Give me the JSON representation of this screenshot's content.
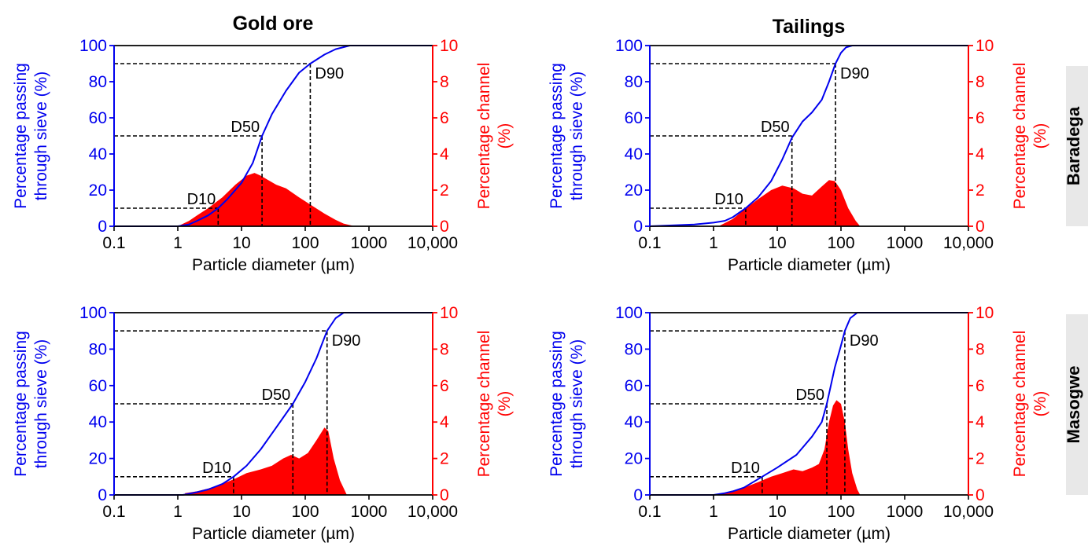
{
  "figure": {
    "column_titles": [
      "Gold ore",
      "Tailings"
    ],
    "row_labels": [
      "Baradega",
      "Masogwe"
    ]
  },
  "colors": {
    "cumulative": "#0000ee",
    "channel": "#ff0000",
    "axis": "#000000",
    "row_tab_bg": "#e8e8e8"
  },
  "chart_data": [
    {
      "type": "line",
      "title": "Gold ore",
      "row": "Baradega",
      "xlabel": "Particle diameter (µm)",
      "ylabel_left": [
        "Percentage passing",
        "through sieve (%)"
      ],
      "ylabel_right": [
        "Percentage channel",
        "(%)"
      ],
      "x_scale": "log",
      "xlim": [
        0.1,
        10000
      ],
      "x_ticks": [
        "0.1",
        "1",
        "10",
        "100",
        "1000",
        "10,000"
      ],
      "ylim_left": [
        0,
        100
      ],
      "y_ticks_left": [
        "0",
        "20",
        "40",
        "60",
        "80",
        "100"
      ],
      "ylim_right": [
        0,
        10
      ],
      "y_ticks_right": [
        "0",
        "2",
        "4",
        "6",
        "8",
        "10"
      ],
      "series": [
        {
          "axis": "left",
          "kind": "line",
          "x": [
            0.1,
            1,
            1.5,
            2,
            3,
            4.3,
            6,
            10,
            15,
            21,
            30,
            50,
            80,
            120,
            200,
            300,
            500,
            1000,
            10000
          ],
          "y": [
            0,
            0,
            1,
            3,
            6,
            10,
            15,
            24,
            35,
            50,
            62,
            75,
            85,
            90,
            95,
            98,
            100,
            100,
            100
          ]
        },
        {
          "axis": "right",
          "kind": "area",
          "x": [
            1,
            1.5,
            2,
            3,
            5,
            8,
            12,
            16,
            20,
            25,
            35,
            50,
            80,
            120,
            200,
            300,
            400,
            600
          ],
          "y": [
            0,
            0.3,
            0.6,
            1.0,
            1.6,
            2.3,
            2.8,
            2.95,
            2.8,
            2.6,
            2.3,
            2.1,
            1.6,
            1.2,
            0.7,
            0.35,
            0.15,
            0
          ]
        }
      ],
      "markers": [
        {
          "label": "D10",
          "x": 4.3,
          "y": 10
        },
        {
          "label": "D50",
          "x": 21,
          "y": 50
        },
        {
          "label": "D90",
          "x": 120,
          "y": 90
        }
      ]
    },
    {
      "type": "line",
      "title": "Tailings",
      "row": "Baradega",
      "xlabel": "Particle diameter (µm)",
      "ylabel_left": [
        "Percentage passing",
        "through sieve (%)"
      ],
      "ylabel_right": [
        "Percentage channel",
        "(%)"
      ],
      "x_scale": "log",
      "xlim": [
        0.1,
        10000
      ],
      "x_ticks": [
        "0.1",
        "1",
        "10",
        "100",
        "1000",
        "10,000"
      ],
      "ylim_left": [
        0,
        100
      ],
      "y_ticks_left": [
        "0",
        "20",
        "40",
        "60",
        "80",
        "100"
      ],
      "ylim_right": [
        0,
        10
      ],
      "y_ticks_right": [
        "0",
        "2",
        "4",
        "6",
        "8",
        "10"
      ],
      "series": [
        {
          "axis": "left",
          "kind": "line",
          "x": [
            0.1,
            0.5,
            1,
            1.5,
            2,
            3.2,
            5,
            8,
            12,
            17,
            25,
            35,
            50,
            65,
            82,
            100,
            120,
            150,
            200,
            10000
          ],
          "y": [
            0,
            1,
            2,
            3,
            5,
            10,
            16,
            25,
            37,
            49,
            58,
            63,
            70,
            80,
            90,
            96,
            99,
            100,
            100,
            100
          ]
        },
        {
          "axis": "right",
          "kind": "area",
          "x": [
            1.2,
            2,
            3,
            5,
            8,
            12,
            18,
            25,
            35,
            50,
            65,
            80,
            100,
            130,
            170,
            200
          ],
          "y": [
            0,
            0.4,
            0.9,
            1.5,
            2.0,
            2.25,
            2.1,
            1.8,
            1.7,
            2.2,
            2.55,
            2.5,
            2.0,
            1.0,
            0.3,
            0
          ]
        }
      ],
      "markers": [
        {
          "label": "D10",
          "x": 3.2,
          "y": 10
        },
        {
          "label": "D50",
          "x": 17,
          "y": 50
        },
        {
          "label": "D90",
          "x": 82,
          "y": 90
        }
      ]
    },
    {
      "type": "line",
      "title": "",
      "row": "Masogwe",
      "xlabel": "Particle diameter (µm)",
      "ylabel_left": [
        "Percentage passing",
        "through sieve (%)"
      ],
      "ylabel_right": [
        "Percentage channel",
        "(%)"
      ],
      "x_scale": "log",
      "xlim": [
        0.1,
        10000
      ],
      "x_ticks": [
        "0.1",
        "1",
        "10",
        "100",
        "1000",
        "10,000"
      ],
      "ylim_left": [
        0,
        100
      ],
      "y_ticks_left": [
        "0",
        "20",
        "40",
        "60",
        "80",
        "100"
      ],
      "ylim_right": [
        0,
        10
      ],
      "y_ticks_right": [
        "0",
        "2",
        "4",
        "6",
        "8",
        "10"
      ],
      "series": [
        {
          "axis": "left",
          "kind": "line",
          "x": [
            0.1,
            1.2,
            2,
            3,
            5,
            7.5,
            12,
            20,
            35,
            64,
            100,
            150,
            220,
            300,
            400,
            10000
          ],
          "y": [
            0,
            0,
            1.5,
            3,
            6,
            10,
            16,
            25,
            37,
            50,
            62,
            75,
            90,
            97,
            100,
            100
          ]
        },
        {
          "axis": "right",
          "kind": "area",
          "x": [
            1.3,
            2,
            3,
            5,
            8,
            12,
            20,
            30,
            45,
            60,
            80,
            110,
            150,
            200,
            230,
            280,
            350,
            450
          ],
          "y": [
            0.1,
            0.2,
            0.35,
            0.6,
            0.9,
            1.2,
            1.4,
            1.6,
            2.0,
            2.2,
            2.0,
            2.3,
            3.0,
            3.7,
            3.5,
            2.0,
            0.8,
            0
          ]
        }
      ],
      "markers": [
        {
          "label": "D10",
          "x": 7.5,
          "y": 10
        },
        {
          "label": "D50",
          "x": 64,
          "y": 50
        },
        {
          "label": "D90",
          "x": 220,
          "y": 90
        }
      ]
    },
    {
      "type": "line",
      "title": "",
      "row": "Masogwe",
      "xlabel": "Particle diameter (µm)",
      "ylabel_left": [
        "Percentage passing",
        "through sieve (%)"
      ],
      "ylabel_right": [
        "Percentage channel",
        "(%)"
      ],
      "x_scale": "log",
      "xlim": [
        0.1,
        10000
      ],
      "x_ticks": [
        "0.1",
        "1",
        "10",
        "100",
        "1000",
        "10,000"
      ],
      "ylim_left": [
        0,
        100
      ],
      "y_ticks_left": [
        "0",
        "20",
        "40",
        "60",
        "80",
        "100"
      ],
      "ylim_right": [
        0,
        10
      ],
      "y_ticks_right": [
        "0",
        "2",
        "4",
        "6",
        "8",
        "10"
      ],
      "series": [
        {
          "axis": "left",
          "kind": "line",
          "x": [
            0.1,
            1,
            1.5,
            2,
            3,
            5.8,
            10,
            20,
            35,
            50,
            60,
            80,
            100,
            115,
            140,
            180,
            10000
          ],
          "y": [
            0,
            0,
            1,
            2,
            4,
            10,
            15,
            22,
            32,
            40,
            50,
            70,
            82,
            90,
            97,
            100,
            100
          ]
        },
        {
          "axis": "right",
          "kind": "area",
          "x": [
            1.1,
            2,
            3,
            5,
            8,
            12,
            18,
            25,
            35,
            45,
            55,
            65,
            75,
            85,
            100,
            115,
            130,
            150,
            180,
            200
          ],
          "y": [
            0,
            0.2,
            0.4,
            0.7,
            1.0,
            1.2,
            1.4,
            1.3,
            1.5,
            1.7,
            2.5,
            4.0,
            4.9,
            5.2,
            5.0,
            4.0,
            2.5,
            1.2,
            0.3,
            0
          ]
        }
      ],
      "markers": [
        {
          "label": "D10",
          "x": 5.8,
          "y": 10
        },
        {
          "label": "D50",
          "x": 60,
          "y": 50
        },
        {
          "label": "D90",
          "x": 115,
          "y": 90
        }
      ]
    }
  ]
}
